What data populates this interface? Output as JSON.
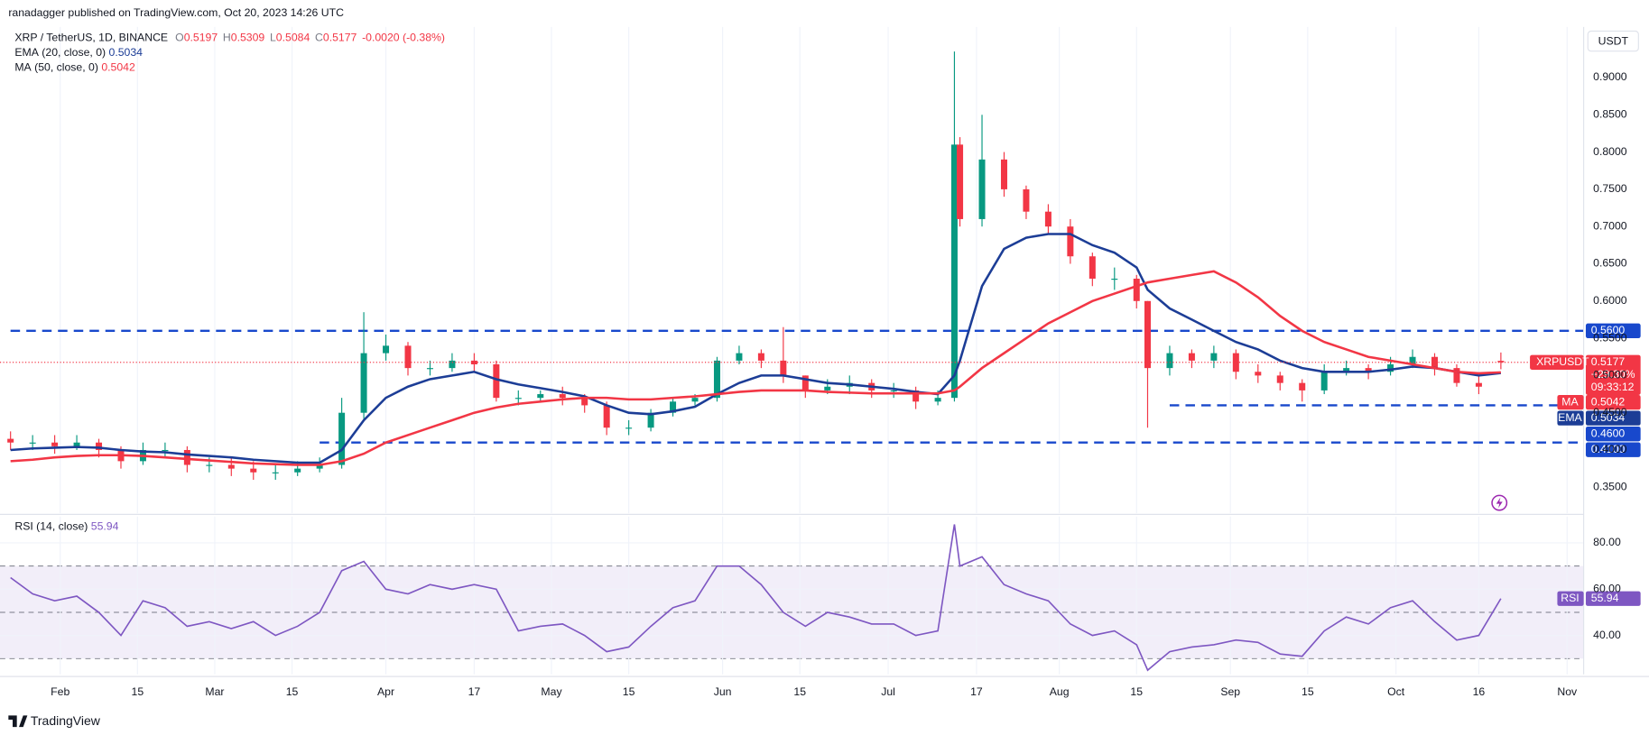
{
  "header": {
    "published": "ranadagger published on TradingView.com, Oct 20, 2023 14:26 UTC",
    "currency": "USDT",
    "brand": "TradingView"
  },
  "chart_data": [
    {
      "type": "candlestick",
      "title": "XRP / TetherUS, 1D, BINANCE",
      "ohlc_keys": [
        "O",
        "H",
        "L",
        "C"
      ],
      "change": "-0.0020 (-0.38%)",
      "symbol_tag": "XRPUSDT",
      "change_pct": "+29.30%",
      "countdown": "09:33:12",
      "up_color": "#089981",
      "down_color": "#f23645",
      "xlim": [
        "01-23",
        "11-04"
      ],
      "ylim": [
        0.315,
        0.968
      ],
      "grid": true,
      "yticks": [
        {
          "value": 0.35,
          "label": "0.3500"
        },
        {
          "value": 0.4,
          "label": "0.4000"
        },
        {
          "value": 0.45,
          "label": "0.4500"
        },
        {
          "value": 0.5,
          "label": "0.5000"
        },
        {
          "value": 0.55,
          "label": "0.5500"
        },
        {
          "value": 0.6,
          "label": "0.6000"
        },
        {
          "value": 0.65,
          "label": "0.6500"
        },
        {
          "value": 0.7,
          "label": "0.7000"
        },
        {
          "value": 0.75,
          "label": "0.7500"
        },
        {
          "value": 0.8,
          "label": "0.8000"
        },
        {
          "value": 0.85,
          "label": "0.8500"
        },
        {
          "value": 0.9,
          "label": "0.9000"
        }
      ],
      "x": [
        "01-23",
        "01-27",
        "01-31",
        "02-04",
        "02-08",
        "02-12",
        "02-16",
        "02-20",
        "02-24",
        "02-28",
        "03-04",
        "03-08",
        "03-12",
        "03-16",
        "03-20",
        "03-24",
        "03-28",
        "04-01",
        "04-05",
        "04-09",
        "04-13",
        "04-17",
        "04-21",
        "04-25",
        "04-29",
        "05-03",
        "05-07",
        "05-11",
        "05-15",
        "05-19",
        "05-23",
        "05-27",
        "05-31",
        "06-04",
        "06-08",
        "06-12",
        "06-16",
        "06-20",
        "06-24",
        "06-28",
        "07-02",
        "07-06",
        "07-10",
        "07-13",
        "07-14",
        "07-18",
        "07-22",
        "07-26",
        "07-30",
        "08-03",
        "08-07",
        "08-11",
        "08-15",
        "08-17",
        "08-21",
        "08-25",
        "08-29",
        "09-02",
        "09-06",
        "09-10",
        "09-14",
        "09-18",
        "09-22",
        "09-26",
        "09-30",
        "10-04",
        "10-08",
        "10-12",
        "10-16",
        "10-20"
      ],
      "open": [
        0.415,
        0.41,
        0.41,
        0.405,
        0.41,
        0.4,
        0.385,
        0.4,
        0.4,
        0.38,
        0.38,
        0.375,
        0.37,
        0.37,
        0.375,
        0.38,
        0.45,
        0.53,
        0.54,
        0.51,
        0.51,
        0.52,
        0.515,
        0.47,
        0.47,
        0.475,
        0.47,
        0.46,
        0.43,
        0.43,
        0.45,
        0.465,
        0.47,
        0.52,
        0.53,
        0.52,
        0.5,
        0.48,
        0.485,
        0.49,
        0.48,
        0.48,
        0.465,
        0.47,
        0.81,
        0.71,
        0.79,
        0.75,
        0.72,
        0.7,
        0.66,
        0.63,
        0.63,
        0.6,
        0.51,
        0.53,
        0.52,
        0.53,
        0.505,
        0.5,
        0.49,
        0.48,
        0.505,
        0.51,
        0.505,
        0.515,
        0.525,
        0.51,
        0.49,
        0.5197
      ],
      "high": [
        0.425,
        0.42,
        0.42,
        0.42,
        0.415,
        0.405,
        0.41,
        0.41,
        0.405,
        0.39,
        0.39,
        0.385,
        0.38,
        0.385,
        0.39,
        0.47,
        0.585,
        0.555,
        0.545,
        0.52,
        0.53,
        0.53,
        0.52,
        0.48,
        0.48,
        0.485,
        0.475,
        0.465,
        0.44,
        0.455,
        0.47,
        0.475,
        0.525,
        0.54,
        0.535,
        0.565,
        0.5,
        0.495,
        0.5,
        0.495,
        0.49,
        0.485,
        0.48,
        0.935,
        0.82,
        0.85,
        0.8,
        0.755,
        0.73,
        0.71,
        0.665,
        0.645,
        0.635,
        0.6,
        0.54,
        0.535,
        0.54,
        0.535,
        0.515,
        0.505,
        0.495,
        0.515,
        0.52,
        0.515,
        0.525,
        0.535,
        0.53,
        0.515,
        0.5,
        0.5309
      ],
      "low": [
        0.4,
        0.4,
        0.395,
        0.4,
        0.39,
        0.375,
        0.38,
        0.39,
        0.37,
        0.37,
        0.365,
        0.36,
        0.36,
        0.365,
        0.37,
        0.375,
        0.44,
        0.52,
        0.5,
        0.5,
        0.505,
        0.505,
        0.465,
        0.46,
        0.465,
        0.46,
        0.45,
        0.42,
        0.42,
        0.425,
        0.445,
        0.46,
        0.465,
        0.515,
        0.51,
        0.49,
        0.47,
        0.475,
        0.475,
        0.47,
        0.47,
        0.455,
        0.46,
        0.465,
        0.7,
        0.7,
        0.74,
        0.71,
        0.69,
        0.65,
        0.62,
        0.615,
        0.59,
        0.43,
        0.5,
        0.51,
        0.51,
        0.495,
        0.49,
        0.48,
        0.465,
        0.475,
        0.5,
        0.495,
        0.5,
        0.51,
        0.5,
        0.485,
        0.475,
        0.5084
      ],
      "close": [
        0.41,
        0.41,
        0.405,
        0.41,
        0.4,
        0.385,
        0.4,
        0.4,
        0.38,
        0.38,
        0.375,
        0.37,
        0.37,
        0.375,
        0.38,
        0.45,
        0.53,
        0.54,
        0.51,
        0.51,
        0.52,
        0.515,
        0.47,
        0.47,
        0.475,
        0.47,
        0.46,
        0.43,
        0.43,
        0.45,
        0.465,
        0.47,
        0.52,
        0.53,
        0.52,
        0.5,
        0.48,
        0.485,
        0.49,
        0.48,
        0.48,
        0.465,
        0.47,
        0.81,
        0.71,
        0.79,
        0.75,
        0.72,
        0.7,
        0.66,
        0.63,
        0.63,
        0.6,
        0.51,
        0.53,
        0.52,
        0.53,
        0.505,
        0.5,
        0.49,
        0.48,
        0.505,
        0.51,
        0.505,
        0.515,
        0.525,
        0.51,
        0.49,
        0.485,
        0.5177
      ],
      "overlays": [
        {
          "name": "EMA",
          "params": "(20, close, 0)",
          "color": "#1c3d96",
          "values": [
            0.4,
            0.402,
            0.403,
            0.404,
            0.403,
            0.4,
            0.398,
            0.397,
            0.394,
            0.392,
            0.39,
            0.387,
            0.385,
            0.383,
            0.383,
            0.4,
            0.44,
            0.47,
            0.485,
            0.495,
            0.5,
            0.505,
            0.495,
            0.488,
            0.483,
            0.478,
            0.472,
            0.46,
            0.45,
            0.448,
            0.452,
            0.458,
            0.475,
            0.49,
            0.5,
            0.5,
            0.495,
            0.49,
            0.488,
            0.485,
            0.482,
            0.478,
            0.475,
            0.5,
            0.52,
            0.62,
            0.67,
            0.685,
            0.69,
            0.69,
            0.675,
            0.665,
            0.645,
            0.615,
            0.59,
            0.575,
            0.56,
            0.545,
            0.535,
            0.52,
            0.51,
            0.505,
            0.505,
            0.505,
            0.508,
            0.512,
            0.51,
            0.505,
            0.5,
            0.5034
          ]
        },
        {
          "name": "MA",
          "params": "(50, close, 0)",
          "color": "#f23645",
          "values": [
            0.385,
            0.387,
            0.39,
            0.392,
            0.393,
            0.393,
            0.392,
            0.39,
            0.388,
            0.386,
            0.384,
            0.382,
            0.381,
            0.38,
            0.38,
            0.385,
            0.395,
            0.41,
            0.42,
            0.43,
            0.44,
            0.45,
            0.457,
            0.462,
            0.465,
            0.468,
            0.47,
            0.47,
            0.468,
            0.468,
            0.47,
            0.472,
            0.475,
            0.478,
            0.48,
            0.48,
            0.48,
            0.478,
            0.477,
            0.476,
            0.476,
            0.476,
            0.476,
            0.48,
            0.485,
            0.51,
            0.53,
            0.55,
            0.57,
            0.585,
            0.6,
            0.61,
            0.62,
            0.625,
            0.63,
            0.635,
            0.64,
            0.625,
            0.605,
            0.58,
            0.56,
            0.545,
            0.535,
            0.525,
            0.52,
            0.515,
            0.51,
            0.505,
            0.503,
            0.5042
          ]
        }
      ],
      "levels": [
        {
          "value": 0.56,
          "label": "0.5600",
          "start": "01-23"
        },
        {
          "value": 0.46,
          "label": "0.4600",
          "start": "08-21"
        },
        {
          "value": 0.41,
          "label": "0.4100",
          "start": "03-20"
        }
      ]
    },
    {
      "type": "line",
      "title": "RSI (14, close)",
      "tag": "RSI",
      "color": "#7e57c2",
      "xlim": [
        "01-23",
        "11-04"
      ],
      "ylim": [
        23.2,
        91.4
      ],
      "levels": [
        30,
        50,
        70
      ],
      "grid": true,
      "yticks": [
        {
          "value": 40,
          "label": "40.00"
        },
        {
          "value": 60,
          "label": "60.00"
        },
        {
          "value": 80,
          "label": "80.00"
        }
      ],
      "xticks": [
        {
          "value": "02-01",
          "label": "Feb"
        },
        {
          "value": "02-15",
          "label": "15"
        },
        {
          "value": "03-01",
          "label": "Mar"
        },
        {
          "value": "03-15",
          "label": "15"
        },
        {
          "value": "04-01",
          "label": "Apr"
        },
        {
          "value": "04-17",
          "label": "17"
        },
        {
          "value": "05-01",
          "label": "May"
        },
        {
          "value": "05-15",
          "label": "15"
        },
        {
          "value": "06-01",
          "label": "Jun"
        },
        {
          "value": "06-15",
          "label": "15"
        },
        {
          "value": "07-01",
          "label": "Jul"
        },
        {
          "value": "07-17",
          "label": "17"
        },
        {
          "value": "08-01",
          "label": "Aug"
        },
        {
          "value": "08-15",
          "label": "15"
        },
        {
          "value": "09-01",
          "label": "Sep"
        },
        {
          "value": "09-15",
          "label": "15"
        },
        {
          "value": "10-01",
          "label": "Oct"
        },
        {
          "value": "10-16",
          "label": "16"
        },
        {
          "value": "11-01",
          "label": "Nov"
        }
      ],
      "x": [
        "01-23",
        "01-27",
        "01-31",
        "02-04",
        "02-08",
        "02-12",
        "02-16",
        "02-20",
        "02-24",
        "02-28",
        "03-04",
        "03-08",
        "03-12",
        "03-16",
        "03-20",
        "03-24",
        "03-28",
        "04-01",
        "04-05",
        "04-09",
        "04-13",
        "04-17",
        "04-21",
        "04-25",
        "04-29",
        "05-03",
        "05-07",
        "05-11",
        "05-15",
        "05-19",
        "05-23",
        "05-27",
        "05-31",
        "06-04",
        "06-08",
        "06-12",
        "06-16",
        "06-20",
        "06-24",
        "06-28",
        "07-02",
        "07-06",
        "07-10",
        "07-13",
        "07-14",
        "07-18",
        "07-22",
        "07-26",
        "07-30",
        "08-03",
        "08-07",
        "08-11",
        "08-15",
        "08-17",
        "08-21",
        "08-25",
        "08-29",
        "09-02",
        "09-06",
        "09-10",
        "09-14",
        "09-18",
        "09-22",
        "09-26",
        "09-30",
        "10-04",
        "10-08",
        "10-12",
        "10-16",
        "10-20"
      ],
      "values": [
        65,
        58,
        55,
        57,
        50,
        40,
        55,
        52,
        44,
        46,
        43,
        46,
        40,
        44,
        50,
        68,
        72,
        60,
        58,
        62,
        60,
        62,
        60,
        42,
        44,
        45,
        40,
        33,
        35,
        44,
        52,
        55,
        70,
        70,
        62,
        50,
        44,
        50,
        48,
        45,
        45,
        40,
        42,
        88,
        70,
        74,
        62,
        58,
        55,
        45,
        40,
        42,
        36,
        25,
        33,
        35,
        36,
        38,
        37,
        32,
        31,
        42,
        48,
        45,
        52,
        55,
        46,
        38,
        40,
        55.94
      ]
    }
  ]
}
